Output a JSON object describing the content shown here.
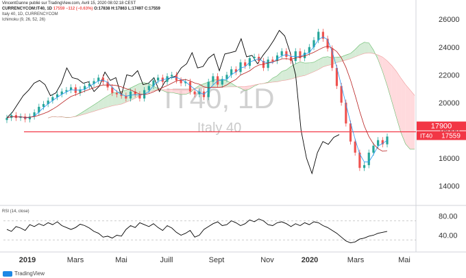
{
  "header": {
    "publisher": "VincentGanne publié sur TradingView.com, Avril 15, 2020 08:02:18 CEST",
    "symbol": "CURRENCYCOM:IT40, 1D",
    "last": "17559",
    "change": "−112 (−0.63%)",
    "open": "O:17838",
    "high": "H:17863",
    "low": "L:17497",
    "close": "C:17559",
    "instrument": "Italy 40, 1D, CURRENCYCOM",
    "indicator": "Ichimoku (9, 26, 52, 26)",
    "rsi_label": "RSI (14, close)"
  },
  "watermark": {
    "main": "IT40, 1D",
    "sub": "Italy 40"
  },
  "footer": {
    "brand": "TradingView"
  },
  "colors": {
    "up": "#26a69a",
    "down": "#ef5350",
    "price_line": "#f23645",
    "cloud_bull": "#c8e6c9",
    "cloud_bear": "#ffcdd2",
    "tenkan": "#2196f3",
    "kijun": "#b71c1c",
    "chikou": "#000000",
    "rsi": "#000000"
  },
  "chart_data": {
    "type": "candlestick",
    "y_axis": {
      "ticks": [
        14000,
        16000,
        18000,
        20000,
        22000,
        24000,
        26000
      ],
      "range": [
        12600,
        26700
      ]
    },
    "x_axis": {
      "labels": [
        "2019",
        "Mars",
        "Mai",
        "Juill",
        "Sept",
        "Nov",
        "2020",
        "Mars",
        "Mai"
      ]
    },
    "price_line": {
      "value": 17900,
      "label": "17900",
      "symbol_tag": "IT40",
      "close_tag": "17559"
    },
    "close_series": [
      18900,
      19100,
      18900,
      19000,
      18800,
      19000,
      19300,
      19700,
      19900,
      20150,
      20400,
      20600,
      20800,
      20900,
      21100,
      20700,
      20950,
      21200,
      21350,
      21550,
      21800,
      21500,
      21100,
      20700,
      20600,
      20500,
      20300,
      20800,
      20600,
      20300,
      20900,
      21200,
      21600,
      21800,
      21500,
      21900,
      22000,
      21600,
      21400,
      21500,
      20800,
      20600,
      20800,
      20400,
      21500,
      21900,
      21300,
      21700,
      22000,
      22400,
      22200,
      22900,
      22650,
      23200,
      23300,
      23000,
      22500,
      23100,
      23000,
      23400,
      23700,
      23300,
      23000,
      23700,
      23200,
      23600,
      24000,
      24500,
      25100,
      24600,
      23900,
      22500,
      21200,
      20000,
      18500,
      17200,
      16400,
      15300,
      15500,
      16400,
      16900,
      17300,
      17000,
      17559
    ],
    "chikou_series": [
      18900,
      19300,
      19900,
      20500,
      20900,
      21400,
      21600,
      21300,
      20500,
      20700,
      21400,
      22500,
      21800,
      21700,
      21400,
      21500,
      20800,
      21200,
      22200,
      21600,
      21800,
      20500,
      22000,
      21900,
      22300,
      21300,
      21400,
      21800,
      20800,
      21500,
      21800,
      21900,
      22500,
      22800,
      23600,
      22500,
      22600,
      23200,
      23500,
      22300,
      23500,
      23600,
      23700,
      24600,
      23300,
      23400,
      22800,
      23400,
      23900,
      24500,
      25200,
      24800,
      23600,
      22000,
      18000,
      16000,
      14900,
      16400,
      17200,
      17000,
      17500,
      17700
    ],
    "rsi": {
      "levels": [
        70,
        30
      ],
      "ticks": [
        40,
        80
      ],
      "values": [
        52,
        48,
        58,
        55,
        50,
        62,
        58,
        64,
        60,
        66,
        62,
        68,
        60,
        56,
        52,
        56,
        63,
        60,
        55,
        48,
        44,
        36,
        38,
        34,
        40,
        38,
        52,
        60,
        56,
        66,
        62,
        58,
        64,
        56,
        50,
        60,
        55,
        46,
        40,
        44,
        50,
        36,
        40,
        52,
        58,
        64,
        68,
        60,
        62,
        70,
        66,
        60,
        64,
        72,
        68,
        74,
        70,
        62,
        60,
        66,
        68,
        64,
        58,
        64,
        60,
        66,
        62,
        68,
        66,
        60,
        56,
        50,
        44,
        36,
        28,
        24,
        26,
        32,
        34,
        38,
        40,
        44,
        46,
        48
      ]
    }
  }
}
